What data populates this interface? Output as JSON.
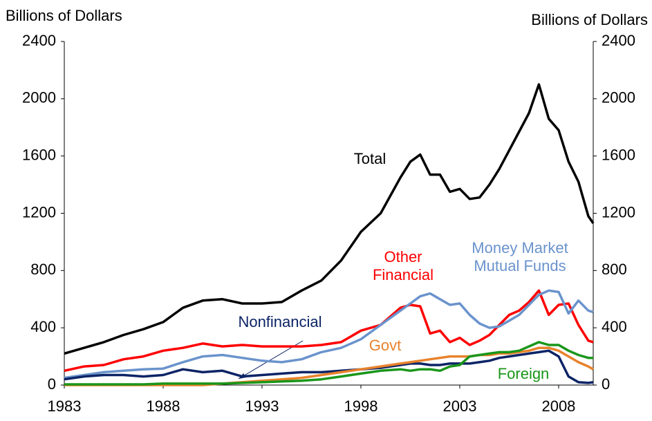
{
  "chart_data": {
    "type": "line",
    "y_label": "Billions of Dollars",
    "y2_label": "Billions of Dollars",
    "x": [
      1983,
      1984,
      1985,
      1986,
      1987,
      1988,
      1989,
      1990,
      1991,
      1992,
      1993,
      1994,
      1995,
      1996,
      1997,
      1998,
      1999,
      2000,
      2000.5,
      2001,
      2001.5,
      2002,
      2002.5,
      2003,
      2003.5,
      2004,
      2004.5,
      2005,
      2005.5,
      2006,
      2006.5,
      2007,
      2007.5,
      2008,
      2008.5,
      2009,
      2009.5,
      2009.75
    ],
    "xlim": [
      1983,
      2009.75
    ],
    "xticks": [
      1983,
      1988,
      1993,
      1998,
      2003,
      2008
    ],
    "ylim": [
      0,
      2400
    ],
    "yticks": [
      0,
      400,
      800,
      1200,
      1600,
      2000,
      2400
    ],
    "y2lim": [
      0,
      2400
    ],
    "y2ticks": [
      0,
      400,
      800,
      1200,
      1600,
      2000,
      2400
    ],
    "series": [
      {
        "name": "Total",
        "color": "#000000",
        "values": [
          220,
          260,
          300,
          350,
          390,
          440,
          540,
          590,
          600,
          570,
          570,
          580,
          660,
          730,
          870,
          1070,
          1200,
          1450,
          1560,
          1610,
          1470,
          1470,
          1350,
          1370,
          1300,
          1310,
          1400,
          1510,
          1640,
          1770,
          1900,
          2100,
          1860,
          1780,
          1560,
          1420,
          1180,
          1130
        ]
      },
      {
        "name": "Other Financial",
        "color": "#ff0000",
        "values": [
          100,
          130,
          140,
          180,
          200,
          240,
          260,
          290,
          270,
          280,
          270,
          270,
          270,
          280,
          300,
          380,
          420,
          540,
          560,
          550,
          360,
          380,
          300,
          330,
          280,
          310,
          350,
          420,
          490,
          520,
          580,
          660,
          490,
          560,
          570,
          420,
          310,
          300
        ]
      },
      {
        "name": "Money Market Mutual Funds",
        "color": "#6a93cc",
        "values": [
          50,
          70,
          90,
          100,
          110,
          115,
          160,
          200,
          210,
          190,
          170,
          160,
          180,
          230,
          260,
          320,
          420,
          520,
          570,
          620,
          640,
          600,
          560,
          570,
          490,
          430,
          400,
          410,
          450,
          490,
          560,
          630,
          660,
          650,
          500,
          590,
          520,
          510
        ]
      },
      {
        "name": "Nonfinancial",
        "color": "#0c2466",
        "values": [
          40,
          60,
          70,
          70,
          60,
          70,
          110,
          90,
          100,
          60,
          70,
          80,
          90,
          90,
          100,
          110,
          120,
          140,
          150,
          150,
          140,
          140,
          150,
          150,
          150,
          160,
          170,
          190,
          200,
          210,
          220,
          230,
          240,
          200,
          60,
          20,
          15,
          20
        ]
      },
      {
        "name": "Govt",
        "color": "#e8822c",
        "values": [
          0,
          0,
          0,
          0,
          0,
          0,
          0,
          0,
          10,
          20,
          30,
          40,
          50,
          70,
          90,
          110,
          130,
          150,
          160,
          170,
          180,
          190,
          200,
          200,
          200,
          210,
          210,
          220,
          220,
          230,
          240,
          260,
          260,
          240,
          200,
          160,
          130,
          110
        ]
      },
      {
        "name": "Foreign",
        "color": "#1a961a",
        "values": [
          5,
          5,
          5,
          5,
          5,
          10,
          10,
          10,
          10,
          15,
          20,
          25,
          30,
          40,
          60,
          80,
          100,
          110,
          100,
          110,
          110,
          100,
          130,
          140,
          200,
          210,
          220,
          230,
          230,
          240,
          270,
          300,
          280,
          280,
          240,
          210,
          190,
          190
        ]
      }
    ]
  }
}
